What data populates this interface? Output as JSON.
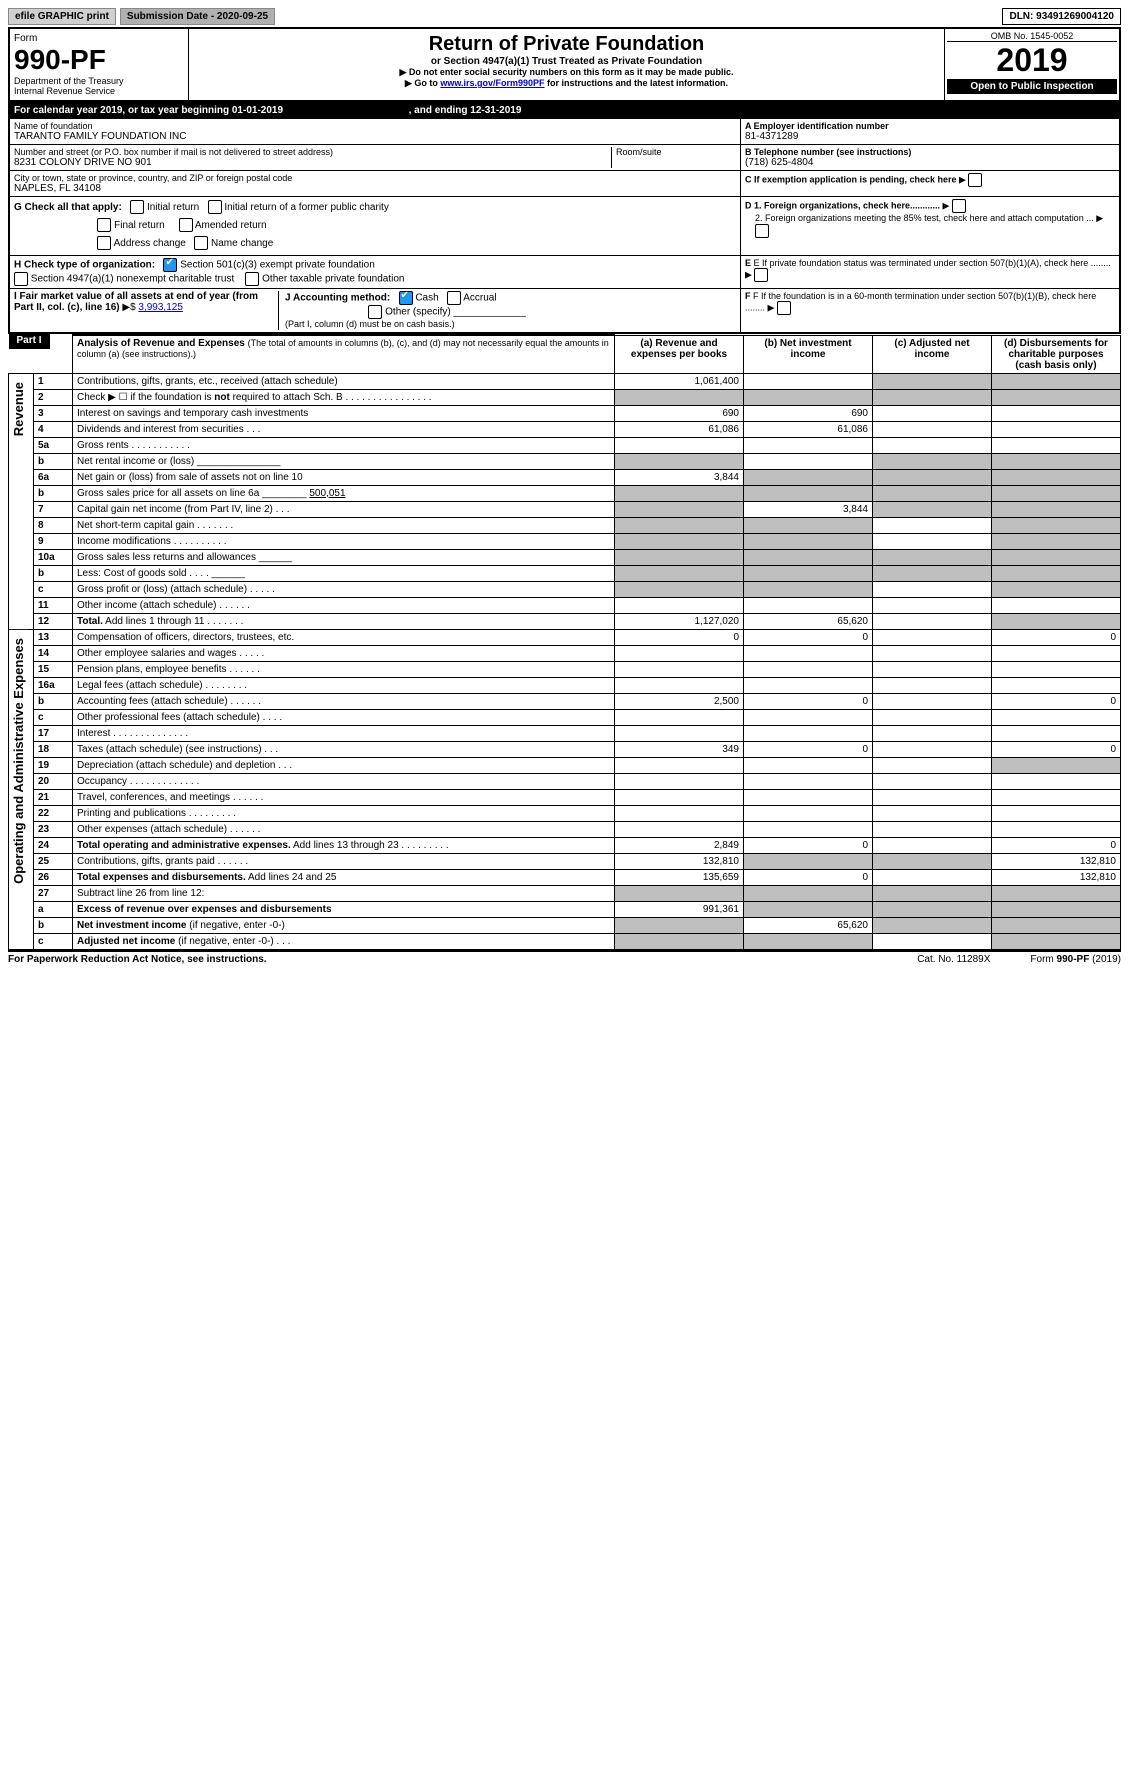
{
  "topbar": {
    "efile": "efile GRAPHIC print",
    "sub_label": "Submission Date - 2020-09-25",
    "dln": "DLN: 93491269004120"
  },
  "header": {
    "form_word": "Form",
    "form_no": "990-PF",
    "dept1": "Department of the Treasury",
    "dept2": "Internal Revenue Service",
    "title": "Return of Private Foundation",
    "sub": "or Section 4947(a)(1) Trust Treated as Private Foundation",
    "warn1": "Do not enter social security numbers on this form as it may be made public.",
    "warn2": "Go to ",
    "link": "www.irs.gov/Form990PF",
    "warn3": " for instructions and the latest information.",
    "omb": "OMB No. 1545-0052",
    "year": "2019",
    "open": "Open to Public Inspection"
  },
  "cal": {
    "line": "For calendar year 2019, or tax year beginning 01-01-2019",
    "end": ", and ending 12-31-2019"
  },
  "id": {
    "name_lbl": "Name of foundation",
    "name": "TARANTO FAMILY FOUNDATION INC",
    "ein_lbl": "A Employer identification number",
    "ein": "81-4371289",
    "addr_lbl": "Number and street (or P.O. box number if mail is not delivered to street address)",
    "addr": "8231 COLONY DRIVE NO 901",
    "room_lbl": "Room/suite",
    "tel_lbl": "B Telephone number (see instructions)",
    "tel": "(718) 625-4804",
    "city_lbl": "City or town, state or province, country, and ZIP or foreign postal code",
    "city": "NAPLES, FL  34108",
    "c": "C If exemption application is pending, check here",
    "g": "G Check all that apply:",
    "g1": "Initial return",
    "g2": "Initial return of a former public charity",
    "g3": "Final return",
    "g4": "Amended return",
    "g5": "Address change",
    "g6": "Name change",
    "d1": "D 1. Foreign organizations, check here............",
    "d2": "2. Foreign organizations meeting the 85% test, check here and attach computation ...",
    "h": "H Check type of organization:",
    "h1": "Section 501(c)(3) exempt private foundation",
    "h2": "Section 4947(a)(1) nonexempt charitable trust",
    "h3": "Other taxable private foundation",
    "e": "E If private foundation status was terminated under section 507(b)(1)(A), check here ........",
    "i": "I Fair market value of all assets at end of year (from Part II, col. (c), line 16)",
    "i_val": "3,993,125",
    "j": "J Accounting method:",
    "j1": "Cash",
    "j2": "Accrual",
    "j3": "Other (specify)",
    "j_note": "(Part I, column (d) must be on cash basis.)",
    "f": "F If the foundation is in a 60-month termination under section 507(b)(1)(B), check here ........"
  },
  "part1": {
    "tag": "Part I",
    "title": "Analysis of Revenue and Expenses",
    "sub": "(The total of amounts in columns (b), (c), and (d) may not necessarily equal the amounts in column (a) (see instructions).)",
    "cols": {
      "a": "(a)   Revenue and expenses per books",
      "b": "(b)  Net investment income",
      "c": "(c)  Adjusted net income",
      "d": "(d)  Disbursements for charitable purposes (cash basis only)"
    }
  },
  "vlabels": {
    "rev": "Revenue",
    "exp": "Operating and Administrative Expenses"
  },
  "rows": [
    {
      "n": "1",
      "t": "Contributions, gifts, grants, etc., received (attach schedule)",
      "a": "1,061,400",
      "d_gray": true,
      "c_gray": true
    },
    {
      "n": "2",
      "t": "Check ▶ ☐ if the foundation is <b>not</b> required to attach Sch. B   .  .  .  .  .  .  .  .  .  .  .  .  .  .  .  .",
      "all_gray": true
    },
    {
      "n": "3",
      "t": "Interest on savings and temporary cash investments",
      "a": "690",
      "b": "690"
    },
    {
      "n": "4",
      "t": "Dividends and interest from securities    .   .   .",
      "a": "61,086",
      "b": "61,086"
    },
    {
      "n": "5a",
      "t": "Gross rents    .   .   .   .   .   .   .   .   .   .   ."
    },
    {
      "n": "b",
      "t": "Net rental income or (loss)  _______________",
      "a_gray": true,
      "c_gray": true,
      "d_gray": true
    },
    {
      "n": "6a",
      "t": "Net gain or (loss) from sale of assets not on line 10",
      "a": "3,844",
      "b_gray": true,
      "c_gray": true,
      "d_gray": true
    },
    {
      "n": "b",
      "t": "Gross sales price for all assets on line 6a ________ <u>500,051</u>",
      "a_gray": true,
      "b_gray": true,
      "c_gray": true,
      "d_gray": true
    },
    {
      "n": "7",
      "t": "Capital gain net income (from Part IV, line 2)   .   .   .",
      "a_gray": true,
      "b": "3,844",
      "c_gray": true,
      "d_gray": true
    },
    {
      "n": "8",
      "t": "Net short-term capital gain   .   .   .   .   .   .   .",
      "a_gray": true,
      "b_gray": true,
      "d_gray": true
    },
    {
      "n": "9",
      "t": "Income modifications  .   .   .   .   .   .   .   .   .   .",
      "a_gray": true,
      "b_gray": true,
      "d_gray": true
    },
    {
      "n": "10a",
      "t": "Gross sales less returns and allowances  ______",
      "a_gray": true,
      "b_gray": true,
      "c_gray": true,
      "d_gray": true
    },
    {
      "n": "b",
      "t": "Less: Cost of goods sold     .   .   .   .   ______",
      "a_gray": true,
      "b_gray": true,
      "c_gray": true,
      "d_gray": true
    },
    {
      "n": "c",
      "t": "Gross profit or (loss) (attach schedule)    .   .   .   .   .",
      "a_gray": true,
      "b_gray": true,
      "d_gray": true
    },
    {
      "n": "11",
      "t": "Other income (attach schedule)    .   .   .   .   .   ."
    },
    {
      "n": "12",
      "t": "<b>Total.</b> Add lines 1 through 11   .   .   .   .   .   .   .",
      "a": "1,127,020",
      "b": "65,620",
      "d_gray": true
    },
    {
      "sec": "exp",
      "n": "13",
      "t": "Compensation of officers, directors, trustees, etc.",
      "a": "0",
      "b": "0",
      "d": "0"
    },
    {
      "n": "14",
      "t": "Other employee salaries and wages    .   .   .   .   ."
    },
    {
      "n": "15",
      "t": "Pension plans, employee benefits   .   .   .   .   .   ."
    },
    {
      "n": "16a",
      "t": "Legal fees (attach schedule)  .   .   .   .   .   .   .   ."
    },
    {
      "n": "b",
      "t": "Accounting fees (attach schedule)   .   .   .   .   .   .",
      "a": "2,500",
      "b": "0",
      "d": "0"
    },
    {
      "n": "c",
      "t": "Other professional fees (attach schedule)    .   .   .   ."
    },
    {
      "n": "17",
      "t": "Interest  .   .   .   .   .   .   .   .   .   .   .   .   .   ."
    },
    {
      "n": "18",
      "t": "Taxes (attach schedule) (see instructions)     .   .   .",
      "a": "349",
      "b": "0",
      "d": "0"
    },
    {
      "n": "19",
      "t": "Depreciation (attach schedule) and depletion   .   .   .",
      "d_gray": true
    },
    {
      "n": "20",
      "t": "Occupancy  .   .   .   .   .   .   .   .   .   .   .   .   ."
    },
    {
      "n": "21",
      "t": "Travel, conferences, and meetings  .   .   .   .   .   ."
    },
    {
      "n": "22",
      "t": "Printing and publications  .   .   .   .   .   .   .   .   ."
    },
    {
      "n": "23",
      "t": "Other expenses (attach schedule)   .   .   .   .   .   ."
    },
    {
      "n": "24",
      "t": "<b>Total operating and administrative expenses.</b> Add lines 13 through 23   .   .   .   .   .   .   .   .   .",
      "a": "2,849",
      "b": "0",
      "d": "0"
    },
    {
      "n": "25",
      "t": "Contributions, gifts, grants paid     .   .   .   .   .   .",
      "a": "132,810",
      "b_gray": true,
      "c_gray": true,
      "d": "132,810"
    },
    {
      "n": "26",
      "t": "<b>Total expenses and disbursements.</b> Add lines 24 and 25",
      "a": "135,659",
      "b": "0",
      "d": "132,810"
    },
    {
      "n": "27",
      "t": "Subtract line 26 from line 12:",
      "a_gray": true,
      "b_gray": true,
      "c_gray": true,
      "d_gray": true
    },
    {
      "n": "a",
      "t": "<b>Excess of revenue over expenses and disbursements</b>",
      "a": "991,361",
      "b_gray": true,
      "c_gray": true,
      "d_gray": true
    },
    {
      "n": "b",
      "t": "<b>Net investment income</b> (if negative, enter -0-)",
      "a_gray": true,
      "b": "65,620",
      "c_gray": true,
      "d_gray": true
    },
    {
      "n": "c",
      "t": "<b>Adjusted net income</b> (if negative, enter -0-)   .   .   .",
      "a_gray": true,
      "b_gray": true,
      "d_gray": true
    }
  ],
  "footer": {
    "l": "For Paperwork Reduction Act Notice, see instructions.",
    "m": "Cat. No. 11289X",
    "r": "Form 990-PF (2019)"
  }
}
